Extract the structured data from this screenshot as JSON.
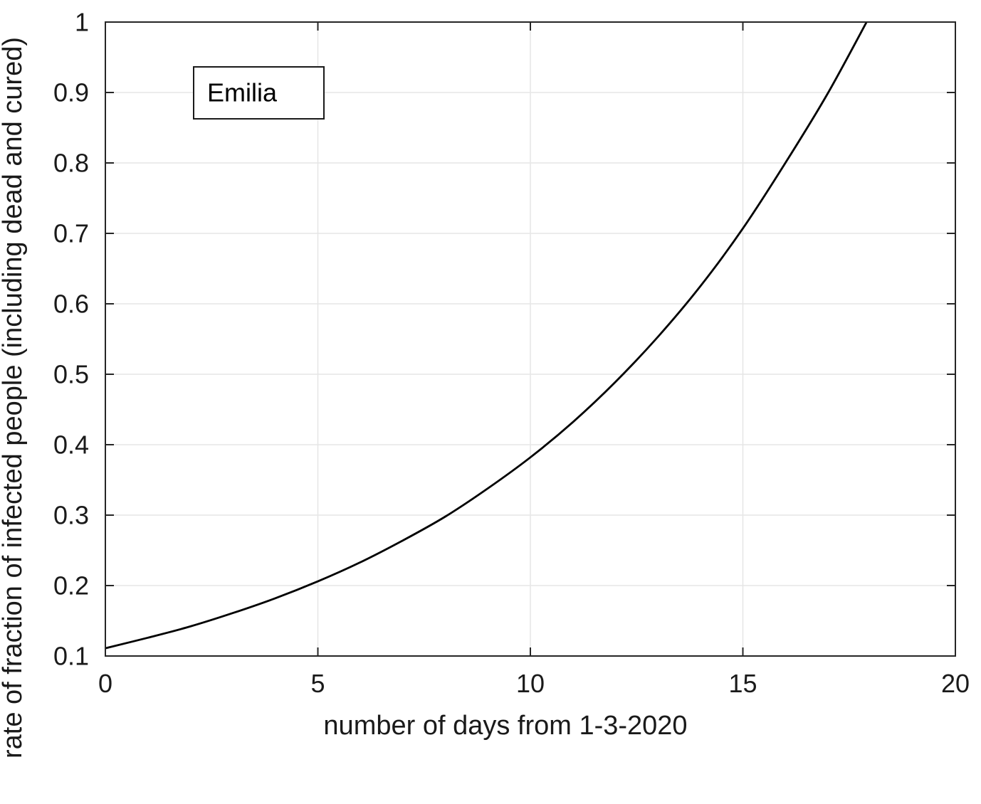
{
  "chart_data": {
    "type": "line",
    "title": "",
    "xlabel": "number of days from 1-3-2020",
    "ylabel": "rate of fraction of infected people (including dead and cured)",
    "xlim": [
      0,
      20
    ],
    "ylim": [
      0.1,
      1
    ],
    "xticks": {
      "values": [
        0,
        5,
        10,
        15,
        20
      ],
      "labels": [
        "0",
        "5",
        "10",
        "15",
        "20"
      ]
    },
    "yticks": {
      "values": [
        0.1,
        0.2,
        0.3,
        0.4,
        0.5,
        0.6,
        0.7,
        0.8,
        0.9,
        1
      ],
      "labels": [
        "0.1",
        "0.2",
        "0.3",
        "0.4",
        "0.5",
        "0.6",
        "0.7",
        "0.8",
        "0.9",
        "1"
      ]
    },
    "grid": true,
    "legend": {
      "labels": [
        "Emilia"
      ],
      "position": "top-left-inside"
    },
    "series": [
      {
        "name": "Emilia",
        "color": "#000000",
        "line_width": 2.8,
        "x": [
          0,
          1,
          2,
          3,
          4,
          5,
          6,
          7,
          8,
          9,
          10,
          11,
          12,
          13,
          14,
          15,
          16,
          17,
          18
        ],
        "y": [
          0.111,
          0.126,
          0.142,
          0.161,
          0.182,
          0.206,
          0.233,
          0.264,
          0.298,
          0.338,
          0.382,
          0.432,
          0.489,
          0.553,
          0.625,
          0.707,
          0.8,
          0.899,
          1.01
        ]
      }
    ],
    "colors": {
      "axis": "#262626",
      "grid": "#e6e6e6",
      "text": "#1a1a1a",
      "background": "#ffffff"
    }
  }
}
